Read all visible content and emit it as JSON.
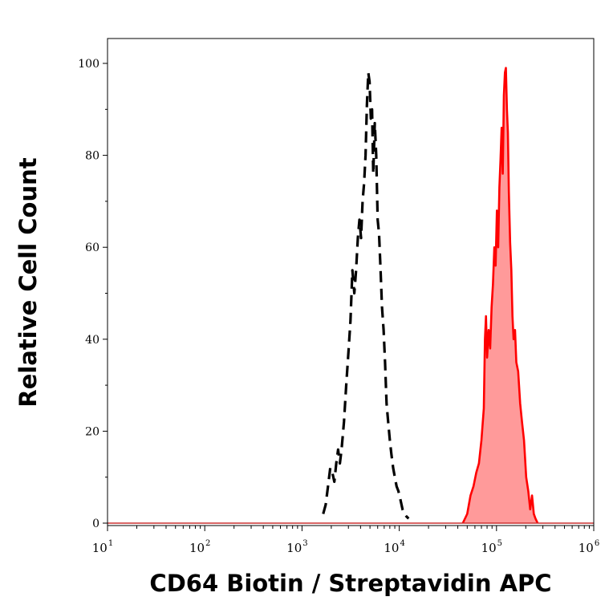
{
  "chart_data": {
    "type": "area",
    "xlabel": "CD64 Biotin / Streptavidin APC",
    "ylabel": "Relative Cell Count",
    "x_scale": "log",
    "xlim": [
      10,
      1000000
    ],
    "ylim": [
      0,
      100
    ],
    "y_ticks": [
      {
        "value": 0,
        "label": "0"
      },
      {
        "value": 20,
        "label": "20"
      },
      {
        "value": 40,
        "label": "40"
      },
      {
        "value": 60,
        "label": "60"
      },
      {
        "value": 80,
        "label": "80"
      },
      {
        "value": 100,
        "label": "100"
      }
    ],
    "x_ticks": [
      {
        "value": 10,
        "base": "10",
        "exp": "1"
      },
      {
        "value": 100,
        "base": "10",
        "exp": "2"
      },
      {
        "value": 1000,
        "base": "10",
        "exp": "3"
      },
      {
        "value": 10000,
        "base": "10",
        "exp": "4"
      },
      {
        "value": 100000,
        "base": "10",
        "exp": "5"
      },
      {
        "value": 1000000,
        "base": "10",
        "exp": "6"
      }
    ],
    "grid": false,
    "series": [
      {
        "style": "dashed",
        "color": "#000000",
        "filled": false,
        "points": [
          [
            1650,
            2
          ],
          [
            1750,
            4
          ],
          [
            1850,
            8
          ],
          [
            1950,
            12
          ],
          [
            2050,
            11
          ],
          [
            2150,
            9
          ],
          [
            2250,
            13
          ],
          [
            2350,
            16
          ],
          [
            2450,
            13
          ],
          [
            2550,
            16
          ],
          [
            2700,
            22
          ],
          [
            2850,
            30
          ],
          [
            3000,
            37
          ],
          [
            3150,
            44
          ],
          [
            3300,
            55
          ],
          [
            3450,
            50
          ],
          [
            3600,
            55
          ],
          [
            3750,
            62
          ],
          [
            3900,
            66
          ],
          [
            4050,
            62
          ],
          [
            4200,
            70
          ],
          [
            4350,
            74
          ],
          [
            4500,
            80
          ],
          [
            4650,
            91
          ],
          [
            4800,
            98
          ],
          [
            4950,
            96
          ],
          [
            5100,
            88
          ],
          [
            5250,
            90
          ],
          [
            5400,
            76
          ],
          [
            5600,
            87
          ],
          [
            5800,
            80
          ],
          [
            6000,
            66
          ],
          [
            6200,
            63
          ],
          [
            6400,
            56
          ],
          [
            6650,
            47
          ],
          [
            6900,
            42
          ],
          [
            7150,
            35
          ],
          [
            7400,
            26
          ],
          [
            7700,
            22
          ],
          [
            8000,
            18
          ],
          [
            8300,
            15
          ],
          [
            8650,
            12
          ],
          [
            9000,
            10
          ],
          [
            9400,
            8
          ],
          [
            9800,
            7
          ],
          [
            10300,
            5
          ],
          [
            10800,
            3
          ],
          [
            11300,
            2
          ],
          [
            11800,
            1.5
          ],
          [
            12500,
            1
          ]
        ]
      },
      {
        "style": "solid",
        "color": "#ff0000",
        "fill": "#ff9a9a",
        "filled": true,
        "points": [
          [
            45000,
            0
          ],
          [
            50000,
            2
          ],
          [
            54000,
            6
          ],
          [
            58000,
            8
          ],
          [
            62000,
            11
          ],
          [
            66000,
            13
          ],
          [
            70000,
            18
          ],
          [
            74000,
            25
          ],
          [
            76000,
            40
          ],
          [
            78000,
            45
          ],
          [
            80000,
            36
          ],
          [
            83000,
            42
          ],
          [
            86000,
            38
          ],
          [
            89000,
            47
          ],
          [
            92000,
            52
          ],
          [
            95000,
            60
          ],
          [
            98000,
            56
          ],
          [
            101000,
            68
          ],
          [
            104000,
            60
          ],
          [
            107000,
            73
          ],
          [
            110000,
            79
          ],
          [
            113000,
            86
          ],
          [
            116000,
            76
          ],
          [
            119000,
            93
          ],
          [
            122000,
            98
          ],
          [
            125000,
            99
          ],
          [
            128000,
            90
          ],
          [
            131000,
            85
          ],
          [
            134000,
            72
          ],
          [
            138000,
            61
          ],
          [
            142000,
            55
          ],
          [
            146000,
            45
          ],
          [
            150000,
            40
          ],
          [
            155000,
            42
          ],
          [
            160000,
            35
          ],
          [
            167000,
            33
          ],
          [
            175000,
            26
          ],
          [
            183000,
            22
          ],
          [
            192000,
            18
          ],
          [
            202000,
            10
          ],
          [
            212000,
            7
          ],
          [
            222000,
            3
          ],
          [
            232000,
            6
          ],
          [
            242000,
            2
          ],
          [
            252000,
            1
          ],
          [
            265000,
            0
          ]
        ]
      }
    ]
  }
}
